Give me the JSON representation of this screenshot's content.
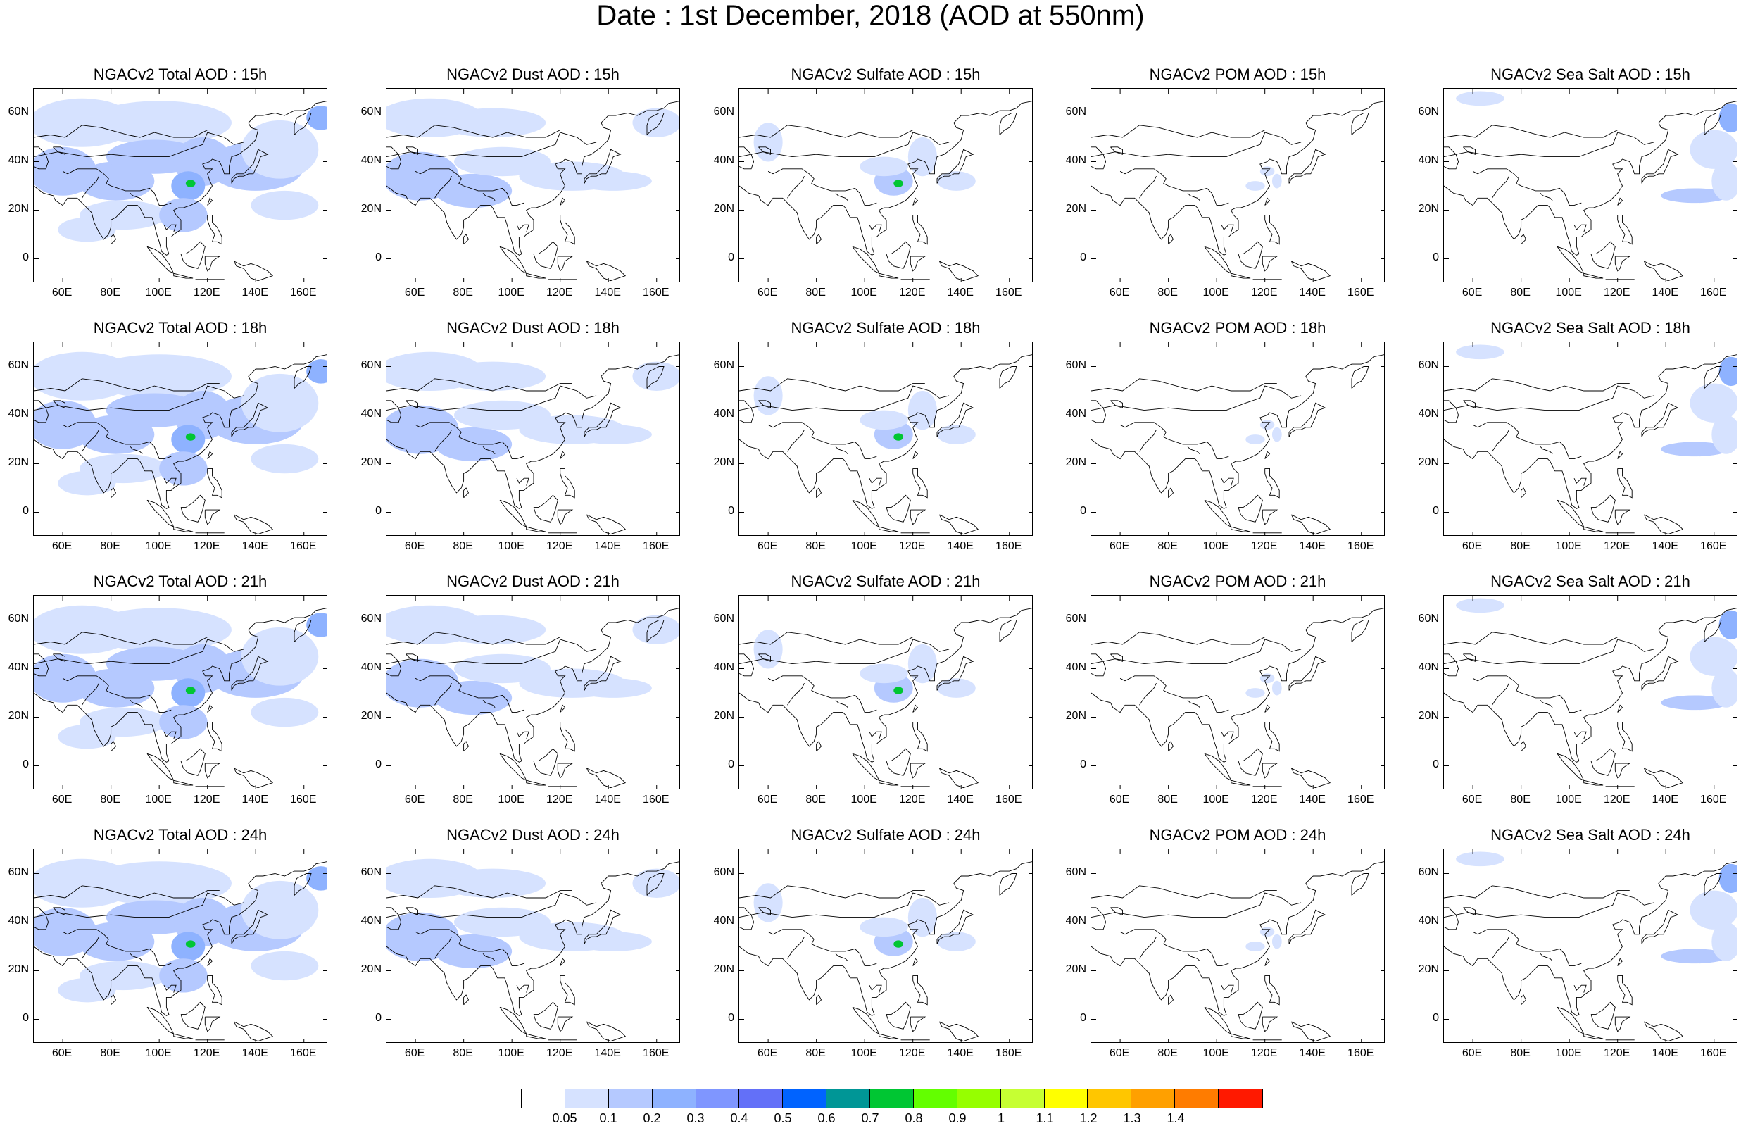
{
  "title": "Date : 1st December, 2018 (AOD at 550nm)",
  "panel_titles": [
    [
      "NGACv2 Total AOD : 15h",
      "NGACv2 Dust AOD : 15h",
      "NGACv2 Sulfate AOD : 15h",
      "NGACv2 POM AOD : 15h",
      "NGACv2 Sea Salt AOD : 15h"
    ],
    [
      "NGACv2 Total AOD : 18h",
      "NGACv2 Dust AOD : 18h",
      "NGACv2 Sulfate AOD : 18h",
      "NGACv2 POM AOD : 18h",
      "NGACv2 Sea Salt AOD : 18h"
    ],
    [
      "NGACv2 Total AOD : 21h",
      "NGACv2 Dust AOD : 21h",
      "NGACv2 Sulfate AOD : 21h",
      "NGACv2 POM AOD : 21h",
      "NGACv2 Sea Salt AOD : 21h"
    ],
    [
      "NGACv2 Total AOD : 24h",
      "NGACv2 Dust AOD : 24h",
      "NGACv2 Sulfate AOD : 24h",
      "NGACv2 POM AOD : 24h",
      "NGACv2 Sea Salt  AOD : 24h"
    ]
  ],
  "y_ticks": [
    "60N",
    "40N",
    "20N",
    "0"
  ],
  "x_ticks": [
    "60E",
    "80E",
    "100E",
    "120E",
    "140E",
    "160E"
  ],
  "colorbar": {
    "labels": [
      "0.05",
      "0.1",
      "0.2",
      "0.3",
      "0.4",
      "0.5",
      "0.6",
      "0.7",
      "0.8",
      "0.9",
      "1",
      "1.1",
      "1.2",
      "1.3",
      "1.4"
    ],
    "colors": [
      "#ffffff",
      "#d6e2ff",
      "#b5c9ff",
      "#8eb2ff",
      "#7f96ff",
      "#6370f8",
      "#0063ff",
      "#009696",
      "#00c633",
      "#63ff00",
      "#96ff00",
      "#c6ff33",
      "#ffff00",
      "#ffc600",
      "#ffa000",
      "#ff7c00",
      "#ff1900"
    ]
  }
}
